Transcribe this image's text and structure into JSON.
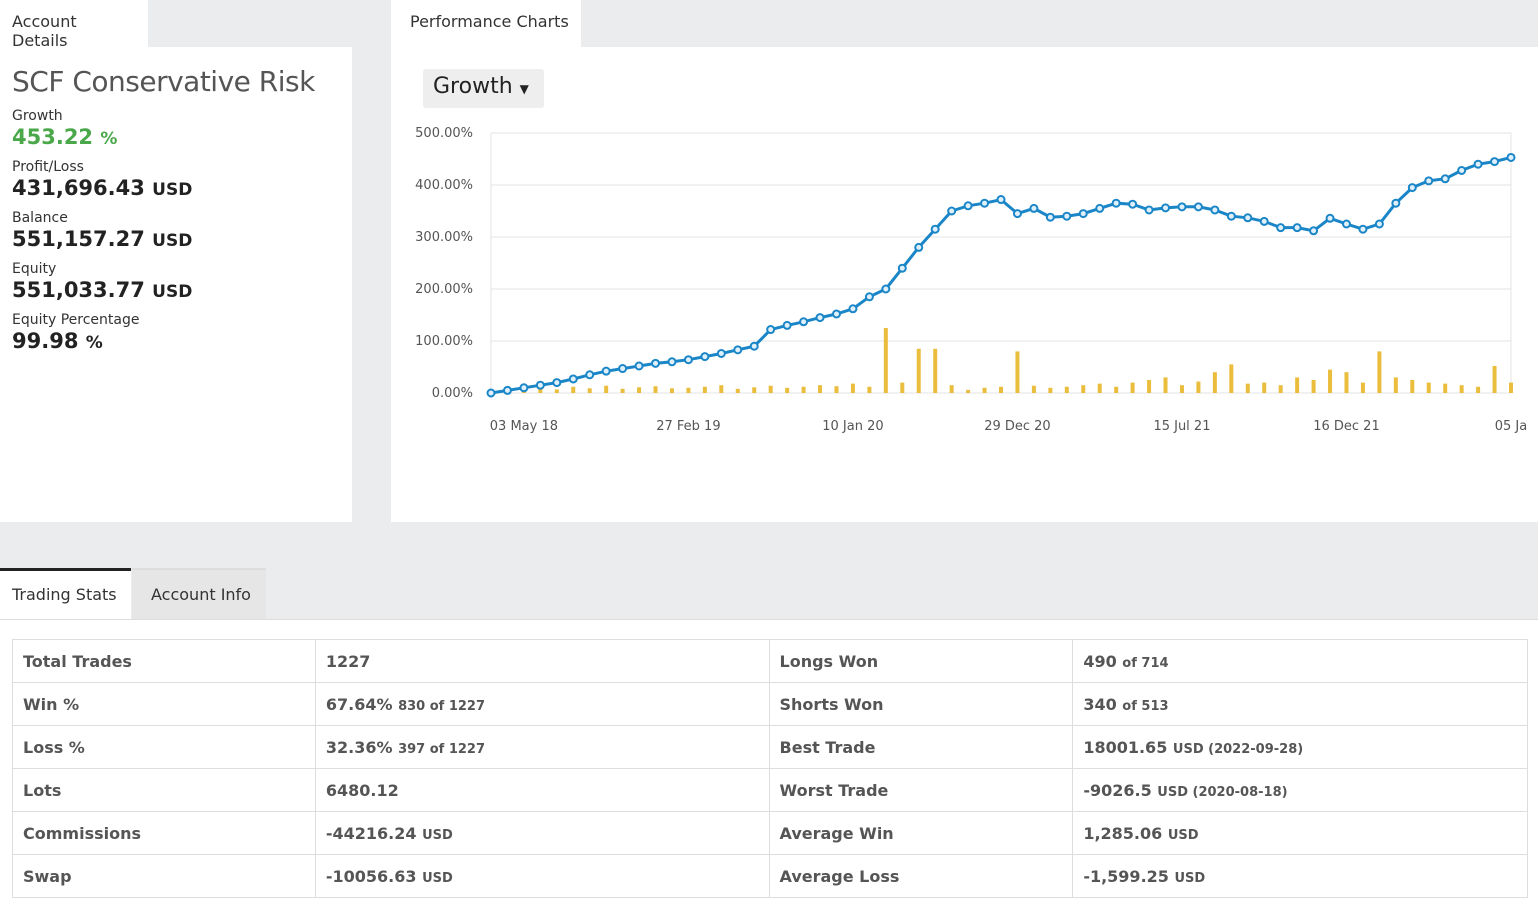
{
  "tabs": {
    "account": "Account Details",
    "charts": "Performance Charts",
    "stats": "Trading Stats",
    "info": "Account Info"
  },
  "account": {
    "title": "SCF Conservative Risk",
    "fields": [
      {
        "label": "Growth",
        "value": "453.22",
        "unit": "%"
      },
      {
        "label": "Profit/Loss",
        "value": "431,696.43",
        "unit": "USD"
      },
      {
        "label": "Balance",
        "value": "551,157.27",
        "unit": "USD"
      },
      {
        "label": "Equity",
        "value": "551,033.77",
        "unit": "USD"
      },
      {
        "label": "Equity Percentage",
        "value": "99.98",
        "unit": "%"
      }
    ]
  },
  "chart_data": {
    "type": "line",
    "selector": "Growth",
    "categories": [
      null,
      null,
      "03 May 18",
      null,
      null,
      null,
      null,
      null,
      null,
      null,
      null,
      null,
      "27 Feb 19",
      null,
      null,
      null,
      null,
      null,
      null,
      null,
      null,
      null,
      "10 Jan 20",
      null,
      null,
      null,
      null,
      null,
      null,
      null,
      null,
      null,
      "29 Dec 20",
      null,
      null,
      null,
      null,
      null,
      null,
      null,
      null,
      null,
      "15 Jul 21",
      null,
      null,
      null,
      null,
      null,
      null,
      null,
      null,
      null,
      "16 Dec 21",
      null,
      null,
      null,
      null,
      null,
      null,
      null,
      null,
      null,
      "05 Ja"
    ],
    "ylim": [
      0,
      500
    ],
    "yticks": [
      {
        "value": 0,
        "label": "0.00%"
      },
      {
        "value": 100,
        "label": "100.00%"
      },
      {
        "value": 200,
        "label": "200.00%"
      },
      {
        "value": 300,
        "label": "300.00%"
      },
      {
        "value": 400,
        "label": "400.00%"
      },
      {
        "value": 500,
        "label": "500.00%"
      }
    ],
    "grid": true,
    "series": [
      {
        "type": "bar",
        "color": "#eabd3d",
        "values": [
          5,
          8,
          6,
          10,
          7,
          12,
          9,
          14,
          8,
          11,
          13,
          9,
          10,
          12,
          15,
          8,
          11,
          14,
          10,
          12,
          15,
          13,
          18,
          12,
          125,
          20,
          85,
          85,
          15,
          6,
          10,
          12,
          80,
          14,
          10,
          12,
          15,
          18,
          12,
          20,
          25,
          30,
          15,
          22,
          40,
          55,
          18,
          20,
          15,
          30,
          25,
          45,
          40,
          20,
          80,
          30,
          25,
          20,
          18,
          15,
          12,
          52,
          20
        ]
      },
      {
        "type": "line",
        "color": "#1a86c7",
        "values": [
          0,
          5,
          10,
          15,
          20,
          27,
          35,
          42,
          47,
          52,
          57,
          60,
          64,
          70,
          76,
          83,
          90,
          122,
          130,
          137,
          145,
          152,
          162,
          185,
          200,
          240,
          280,
          315,
          350,
          360,
          365,
          372,
          345,
          355,
          338,
          340,
          345,
          355,
          365,
          363,
          352,
          356,
          358,
          358,
          352,
          340,
          337,
          330,
          318,
          318,
          312,
          336,
          325,
          315,
          325,
          365,
          395,
          408,
          412,
          428,
          440,
          445,
          453
        ]
      }
    ]
  },
  "stats": {
    "rows": [
      [
        {
          "label": "Total Trades",
          "value": "1227",
          "note": null
        },
        {
          "label": "Longs Won",
          "value": "490",
          "note": "of 714"
        }
      ],
      [
        {
          "label": "Win %",
          "value": "67.64%",
          "note": "830 of 1227"
        },
        {
          "label": "Shorts Won",
          "value": "340",
          "note": "of 513"
        }
      ],
      [
        {
          "label": "Loss %",
          "value": "32.36%",
          "note": "397 of 1227"
        },
        {
          "label": "Best Trade",
          "value": "18001.65",
          "note": "USD (2022-09-28)"
        }
      ],
      [
        {
          "label": "Lots",
          "value": "6480.12",
          "note": null
        },
        {
          "label": "Worst Trade",
          "value": "-9026.5",
          "note": "USD (2020-08-18)"
        }
      ],
      [
        {
          "label": "Commissions",
          "value": "-44216.24",
          "note": "USD"
        },
        {
          "label": "Average Win",
          "value": "1,285.06",
          "note": "USD"
        }
      ],
      [
        {
          "label": "Swap",
          "value": "-10056.63",
          "note": "USD"
        },
        {
          "label": "Average Loss",
          "value": "-1,599.25",
          "note": "USD"
        }
      ]
    ]
  }
}
